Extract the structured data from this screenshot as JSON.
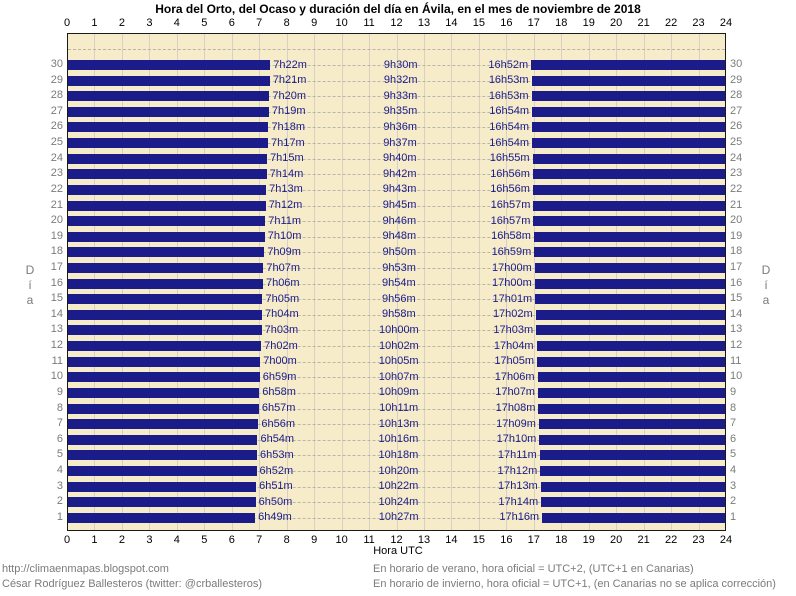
{
  "title": "Hora del Orto, del Ocaso y duración del día en Ávila, en el mes de noviembre de 2018",
  "axes": {
    "x_label": "Hora UTC",
    "y_label": "Día",
    "hour_ticks": [
      0,
      1,
      2,
      3,
      4,
      5,
      6,
      7,
      8,
      9,
      10,
      11,
      12,
      13,
      14,
      15,
      16,
      17,
      18,
      19,
      20,
      21,
      22,
      23,
      24
    ]
  },
  "footer": {
    "left_line1": "http://climaenmapas.blogspot.com",
    "left_line2": "César Rodríguez Ballesteros (twitter: @crballesteros)",
    "right_line1": "En horario de verano, hora oficial = UTC+2, (UTC+1 en Canarias)",
    "right_line2": "En horario de invierno, hora oficial = UTC+1, (en Canarias no se aplica corrección)"
  },
  "colors": {
    "night_bar": "#1b1b8a",
    "day_background": "#f6ecca",
    "vertical_grid": "#d6d1c2",
    "horizontal_dash": "#b9b5a9",
    "plot_border": "#1a1a1a",
    "time_text": "#1b1b8a",
    "axis_text": "#000000",
    "gray_text": "#7b7b7b"
  },
  "chart_data": {
    "type": "bar",
    "title": "Hora del Orto, del Ocaso y duración del día en Ávila, en el mes de noviembre de 2018",
    "xlabel": "Hora UTC",
    "ylabel": "Día",
    "xlim": [
      0,
      24
    ],
    "grid": true,
    "note": "Night shown as navy bars from 0h to sunrise (orto) and from sunset (ocaso) to 24h; daylight gap labeled with duration. Rows listed top-to-bottom (day 30 to day 1).",
    "rows": [
      {
        "day": 30,
        "sunrise": "7h22m",
        "duration": "9h30m",
        "sunset": "16h52m"
      },
      {
        "day": 29,
        "sunrise": "7h21m",
        "duration": "9h32m",
        "sunset": "16h53m"
      },
      {
        "day": 28,
        "sunrise": "7h20m",
        "duration": "9h33m",
        "sunset": "16h53m"
      },
      {
        "day": 27,
        "sunrise": "7h19m",
        "duration": "9h35m",
        "sunset": "16h54m"
      },
      {
        "day": 26,
        "sunrise": "7h18m",
        "duration": "9h36m",
        "sunset": "16h54m"
      },
      {
        "day": 25,
        "sunrise": "7h17m",
        "duration": "9h37m",
        "sunset": "16h54m"
      },
      {
        "day": 24,
        "sunrise": "7h15m",
        "duration": "9h40m",
        "sunset": "16h55m"
      },
      {
        "day": 23,
        "sunrise": "7h14m",
        "duration": "9h42m",
        "sunset": "16h56m"
      },
      {
        "day": 22,
        "sunrise": "7h13m",
        "duration": "9h43m",
        "sunset": "16h56m"
      },
      {
        "day": 21,
        "sunrise": "7h12m",
        "duration": "9h45m",
        "sunset": "16h57m"
      },
      {
        "day": 20,
        "sunrise": "7h11m",
        "duration": "9h46m",
        "sunset": "16h57m"
      },
      {
        "day": 19,
        "sunrise": "7h10m",
        "duration": "9h48m",
        "sunset": "16h58m"
      },
      {
        "day": 18,
        "sunrise": "7h09m",
        "duration": "9h50m",
        "sunset": "16h59m"
      },
      {
        "day": 17,
        "sunrise": "7h07m",
        "duration": "9h53m",
        "sunset": "17h00m"
      },
      {
        "day": 16,
        "sunrise": "7h06m",
        "duration": "9h54m",
        "sunset": "17h00m"
      },
      {
        "day": 15,
        "sunrise": "7h05m",
        "duration": "9h56m",
        "sunset": "17h01m"
      },
      {
        "day": 14,
        "sunrise": "7h04m",
        "duration": "9h58m",
        "sunset": "17h02m"
      },
      {
        "day": 13,
        "sunrise": "7h03m",
        "duration": "10h00m",
        "sunset": "17h03m"
      },
      {
        "day": 12,
        "sunrise": "7h02m",
        "duration": "10h02m",
        "sunset": "17h04m"
      },
      {
        "day": 11,
        "sunrise": "7h00m",
        "duration": "10h05m",
        "sunset": "17h05m"
      },
      {
        "day": 10,
        "sunrise": "6h59m",
        "duration": "10h07m",
        "sunset": "17h06m"
      },
      {
        "day": 9,
        "sunrise": "6h58m",
        "duration": "10h09m",
        "sunset": "17h07m"
      },
      {
        "day": 8,
        "sunrise": "6h57m",
        "duration": "10h11m",
        "sunset": "17h08m"
      },
      {
        "day": 7,
        "sunrise": "6h56m",
        "duration": "10h13m",
        "sunset": "17h09m"
      },
      {
        "day": 6,
        "sunrise": "6h54m",
        "duration": "10h16m",
        "sunset": "17h10m"
      },
      {
        "day": 5,
        "sunrise": "6h53m",
        "duration": "10h18m",
        "sunset": "17h11m"
      },
      {
        "day": 4,
        "sunrise": "6h52m",
        "duration": "10h20m",
        "sunset": "17h12m"
      },
      {
        "day": 3,
        "sunrise": "6h51m",
        "duration": "10h22m",
        "sunset": "17h13m"
      },
      {
        "day": 2,
        "sunrise": "6h50m",
        "duration": "10h24m",
        "sunset": "17h14m"
      },
      {
        "day": 1,
        "sunrise": "6h49m",
        "duration": "10h27m",
        "sunset": "17h16m"
      }
    ]
  }
}
